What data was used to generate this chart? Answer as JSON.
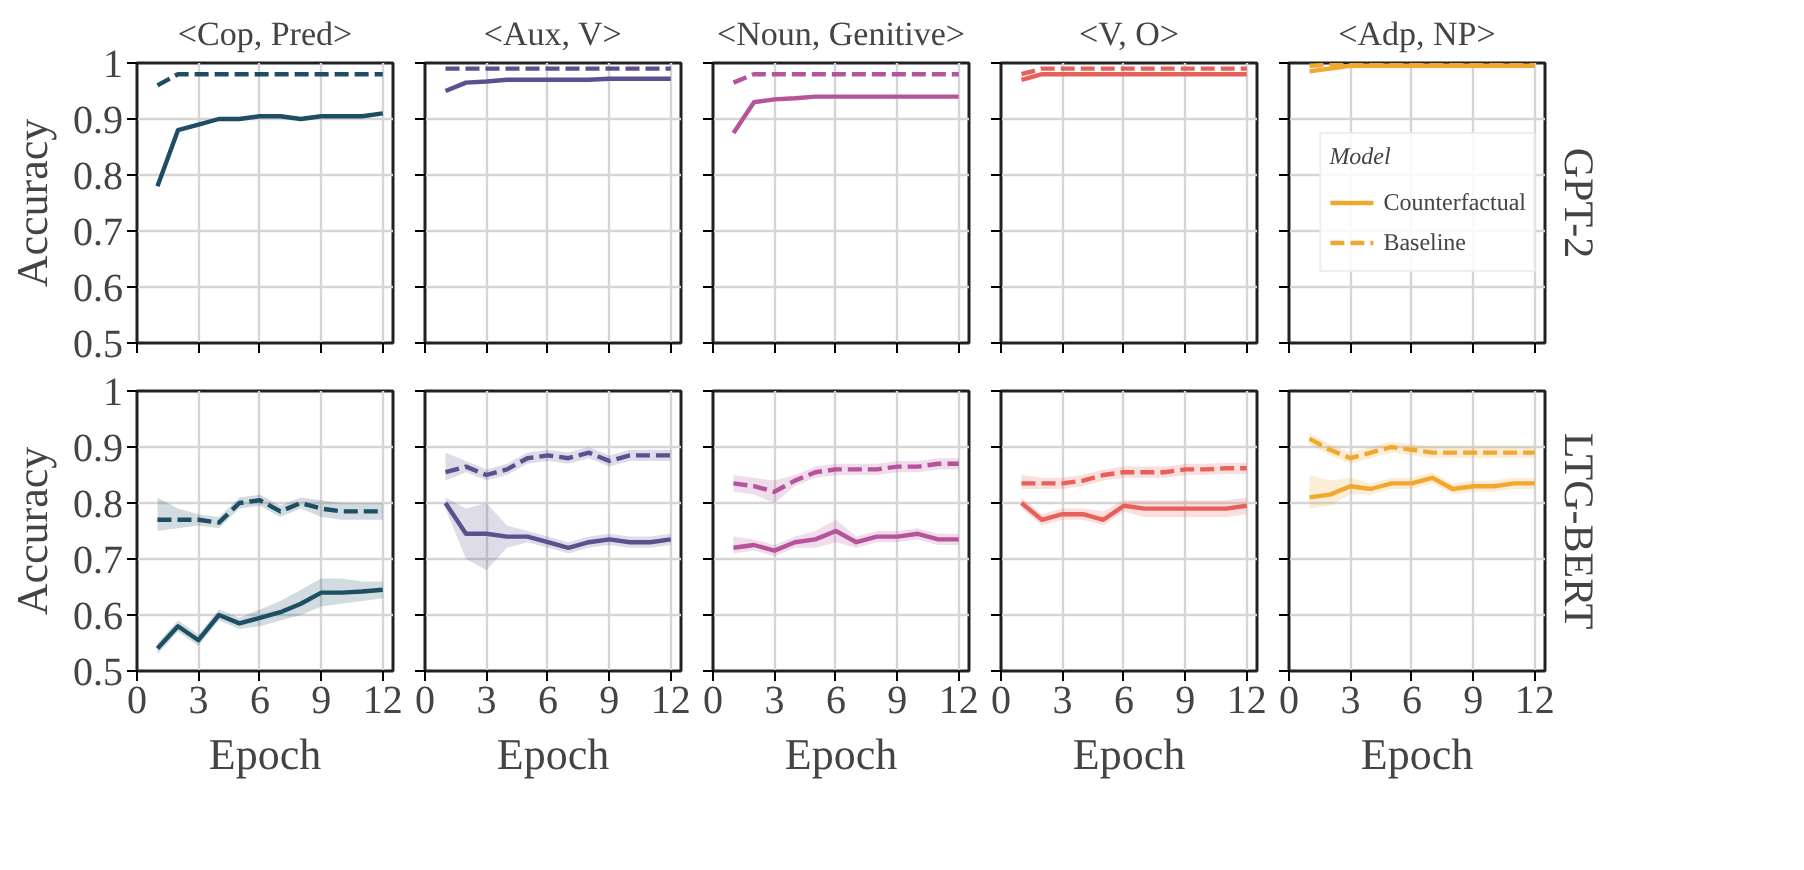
{
  "chart_data": [
    {
      "type": "line",
      "title": "<Cop, Pred>",
      "ylabel": "Accuracy",
      "x": [
        1,
        2,
        3,
        4,
        5,
        6,
        7,
        8,
        9,
        10,
        11,
        12
      ],
      "xlim": [
        0,
        12.5
      ],
      "xticks": [
        0,
        3,
        6,
        9,
        12
      ],
      "ylim": [
        0.5,
        1
      ],
      "yticks": [
        0.5,
        0.6,
        0.7,
        0.8,
        0.9,
        1
      ],
      "grid": true,
      "tick_labels": "y",
      "series": [
        {
          "color": "#1d4e63",
          "line_style": "solid",
          "values": [
            0.78,
            0.88,
            0.89,
            0.9,
            0.9,
            0.905,
            0.905,
            0.9,
            0.905,
            0.905,
            0.905,
            0.91
          ]
        },
        {
          "color": "#1d4e63",
          "line_style": "dashed",
          "values": [
            0.96,
            0.98,
            0.98,
            0.98,
            0.98,
            0.98,
            0.98,
            0.98,
            0.98,
            0.98,
            0.98,
            0.98
          ]
        }
      ]
    },
    {
      "type": "line",
      "title": "<Aux, V>",
      "x": [
        1,
        2,
        3,
        4,
        5,
        6,
        7,
        8,
        9,
        10,
        11,
        12
      ],
      "xlim": [
        0,
        12.5
      ],
      "xticks": [
        0,
        3,
        6,
        9,
        12
      ],
      "ylim": [
        0.5,
        1
      ],
      "yticks": [
        0.5,
        0.6,
        0.7,
        0.8,
        0.9,
        1
      ],
      "grid": true,
      "tick_labels": false,
      "series": [
        {
          "color": "#5e4f8f",
          "line_style": "solid",
          "values": [
            0.95,
            0.965,
            0.967,
            0.97,
            0.97,
            0.97,
            0.97,
            0.97,
            0.972,
            0.972,
            0.972,
            0.972
          ]
        },
        {
          "color": "#5e4f8f",
          "line_style": "dashed",
          "values": [
            0.99,
            0.99,
            0.99,
            0.99,
            0.99,
            0.99,
            0.99,
            0.99,
            0.99,
            0.99,
            0.99,
            0.99
          ]
        }
      ]
    },
    {
      "type": "line",
      "title": "<Noun, Genitive>",
      "x": [
        1,
        2,
        3,
        4,
        5,
        6,
        7,
        8,
        9,
        10,
        11,
        12
      ],
      "xlim": [
        0,
        12.5
      ],
      "xticks": [
        0,
        3,
        6,
        9,
        12
      ],
      "ylim": [
        0.5,
        1
      ],
      "yticks": [
        0.5,
        0.6,
        0.7,
        0.8,
        0.9,
        1
      ],
      "grid": true,
      "tick_labels": false,
      "series": [
        {
          "color": "#b5549a",
          "line_style": "solid",
          "values": [
            0.875,
            0.93,
            0.935,
            0.937,
            0.94,
            0.94,
            0.94,
            0.94,
            0.94,
            0.94,
            0.94,
            0.94
          ]
        },
        {
          "color": "#b5549a",
          "line_style": "dashed",
          "values": [
            0.965,
            0.98,
            0.98,
            0.98,
            0.98,
            0.98,
            0.98,
            0.98,
            0.98,
            0.98,
            0.98,
            0.98
          ]
        }
      ]
    },
    {
      "type": "line",
      "title": "<V, O>",
      "x": [
        1,
        2,
        3,
        4,
        5,
        6,
        7,
        8,
        9,
        10,
        11,
        12
      ],
      "xlim": [
        0,
        12.5
      ],
      "xticks": [
        0,
        3,
        6,
        9,
        12
      ],
      "ylim": [
        0.5,
        1
      ],
      "yticks": [
        0.5,
        0.6,
        0.7,
        0.8,
        0.9,
        1
      ],
      "grid": true,
      "tick_labels": false,
      "series": [
        {
          "color": "#e8605a",
          "line_style": "solid",
          "values": [
            0.97,
            0.98,
            0.98,
            0.98,
            0.98,
            0.98,
            0.98,
            0.98,
            0.98,
            0.98,
            0.98,
            0.98
          ]
        },
        {
          "color": "#e8605a",
          "line_style": "dashed",
          "values": [
            0.98,
            0.99,
            0.99,
            0.99,
            0.99,
            0.99,
            0.99,
            0.99,
            0.99,
            0.99,
            0.99,
            0.99
          ]
        }
      ]
    },
    {
      "type": "line",
      "title": "<Adp, NP>",
      "annotations": [
        "GPT-2"
      ],
      "legend": "right",
      "legend_title": "Model",
      "x": [
        1,
        2,
        3,
        4,
        5,
        6,
        7,
        8,
        9,
        10,
        11,
        12
      ],
      "xlim": [
        0,
        12.5
      ],
      "xticks": [
        0,
        3,
        6,
        9,
        12
      ],
      "ylim": [
        0.5,
        1
      ],
      "yticks": [
        0.5,
        0.6,
        0.7,
        0.8,
        0.9,
        1
      ],
      "grid": true,
      "tick_labels": false,
      "series": [
        {
          "name": "Counterfactual",
          "color": "#f0a830",
          "line_style": "solid",
          "values": [
            0.985,
            0.99,
            0.995,
            0.995,
            0.995,
            0.995,
            0.995,
            0.995,
            0.995,
            0.995,
            0.995,
            0.995
          ]
        },
        {
          "name": "Baseline",
          "color": "#f0a830",
          "line_style": "dashed",
          "values": [
            0.995,
            0.997,
            0.997,
            0.997,
            0.997,
            0.997,
            0.997,
            0.997,
            0.997,
            0.997,
            0.997,
            0.997
          ]
        }
      ]
    },
    {
      "type": "line",
      "xlabel": "Epoch",
      "ylabel": "Accuracy",
      "x": [
        1,
        2,
        3,
        4,
        5,
        6,
        7,
        8,
        9,
        10,
        11,
        12
      ],
      "xlim": [
        0,
        12.5
      ],
      "xticks": [
        0,
        3,
        6,
        9,
        12
      ],
      "ylim": [
        0.5,
        1
      ],
      "yticks": [
        0.5,
        0.6,
        0.7,
        0.8,
        0.9,
        1
      ],
      "grid": true,
      "series": [
        {
          "color": "#1d4e63",
          "line_style": "solid",
          "values": [
            0.54,
            0.58,
            0.555,
            0.6,
            0.585,
            0.595,
            0.605,
            0.62,
            0.64,
            0.64,
            0.642,
            0.645
          ],
          "lower": [
            0.53,
            0.57,
            0.545,
            0.59,
            0.575,
            0.58,
            0.59,
            0.6,
            0.615,
            0.62,
            0.625,
            0.63
          ],
          "upper": [
            0.55,
            0.59,
            0.565,
            0.61,
            0.595,
            0.61,
            0.625,
            0.645,
            0.665,
            0.665,
            0.66,
            0.66
          ]
        },
        {
          "color": "#1d4e63",
          "line_style": "dashed",
          "values": [
            0.77,
            0.77,
            0.77,
            0.765,
            0.8,
            0.805,
            0.785,
            0.8,
            0.79,
            0.785,
            0.785,
            0.785
          ],
          "lower": [
            0.75,
            0.755,
            0.76,
            0.755,
            0.79,
            0.795,
            0.775,
            0.79,
            0.775,
            0.77,
            0.77,
            0.77
          ],
          "upper": [
            0.81,
            0.79,
            0.78,
            0.775,
            0.81,
            0.815,
            0.795,
            0.81,
            0.805,
            0.8,
            0.8,
            0.8
          ]
        }
      ]
    },
    {
      "type": "line",
      "xlabel": "Epoch",
      "x": [
        1,
        2,
        3,
        4,
        5,
        6,
        7,
        8,
        9,
        10,
        11,
        12
      ],
      "xlim": [
        0,
        12.5
      ],
      "xticks": [
        0,
        3,
        6,
        9,
        12
      ],
      "ylim": [
        0.5,
        1
      ],
      "yticks": [
        0.5,
        0.6,
        0.7,
        0.8,
        0.9,
        1
      ],
      "grid": true,
      "tick_labels": "x",
      "series": [
        {
          "color": "#5e4f8f",
          "line_style": "solid",
          "values": [
            0.8,
            0.745,
            0.745,
            0.74,
            0.74,
            0.73,
            0.72,
            0.73,
            0.735,
            0.73,
            0.73,
            0.735
          ],
          "lower": [
            0.79,
            0.7,
            0.68,
            0.72,
            0.73,
            0.72,
            0.71,
            0.72,
            0.725,
            0.72,
            0.72,
            0.725
          ],
          "upper": [
            0.81,
            0.79,
            0.8,
            0.76,
            0.75,
            0.74,
            0.73,
            0.74,
            0.745,
            0.74,
            0.74,
            0.745
          ]
        },
        {
          "color": "#5e4f8f",
          "line_style": "dashed",
          "values": [
            0.855,
            0.865,
            0.85,
            0.86,
            0.88,
            0.885,
            0.88,
            0.89,
            0.875,
            0.885,
            0.885,
            0.885
          ],
          "lower": [
            0.84,
            0.855,
            0.84,
            0.85,
            0.87,
            0.875,
            0.87,
            0.88,
            0.865,
            0.875,
            0.875,
            0.875
          ],
          "upper": [
            0.89,
            0.875,
            0.86,
            0.87,
            0.89,
            0.895,
            0.89,
            0.9,
            0.885,
            0.895,
            0.895,
            0.895
          ]
        }
      ]
    },
    {
      "type": "line",
      "xlabel": "Epoch",
      "x": [
        1,
        2,
        3,
        4,
        5,
        6,
        7,
        8,
        9,
        10,
        11,
        12
      ],
      "xlim": [
        0,
        12.5
      ],
      "xticks": [
        0,
        3,
        6,
        9,
        12
      ],
      "ylim": [
        0.5,
        1
      ],
      "yticks": [
        0.5,
        0.6,
        0.7,
        0.8,
        0.9,
        1
      ],
      "grid": true,
      "tick_labels": "x",
      "series": [
        {
          "color": "#b5549a",
          "line_style": "solid",
          "values": [
            0.72,
            0.725,
            0.715,
            0.73,
            0.735,
            0.75,
            0.73,
            0.74,
            0.74,
            0.745,
            0.735,
            0.735
          ],
          "lower": [
            0.71,
            0.715,
            0.705,
            0.72,
            0.72,
            0.73,
            0.72,
            0.73,
            0.73,
            0.735,
            0.725,
            0.725
          ],
          "upper": [
            0.74,
            0.735,
            0.725,
            0.74,
            0.75,
            0.77,
            0.74,
            0.75,
            0.75,
            0.755,
            0.745,
            0.745
          ]
        },
        {
          "color": "#b5549a",
          "line_style": "dashed",
          "values": [
            0.835,
            0.83,
            0.82,
            0.84,
            0.855,
            0.86,
            0.86,
            0.86,
            0.865,
            0.865,
            0.87,
            0.87
          ],
          "lower": [
            0.82,
            0.815,
            0.8,
            0.83,
            0.845,
            0.85,
            0.85,
            0.85,
            0.855,
            0.855,
            0.86,
            0.86
          ],
          "upper": [
            0.85,
            0.845,
            0.84,
            0.85,
            0.865,
            0.87,
            0.87,
            0.87,
            0.875,
            0.875,
            0.88,
            0.88
          ]
        }
      ]
    },
    {
      "type": "line",
      "xlabel": "Epoch",
      "x": [
        1,
        2,
        3,
        4,
        5,
        6,
        7,
        8,
        9,
        10,
        11,
        12
      ],
      "xlim": [
        0,
        12.5
      ],
      "xticks": [
        0,
        3,
        6,
        9,
        12
      ],
      "ylim": [
        0.5,
        1
      ],
      "yticks": [
        0.5,
        0.6,
        0.7,
        0.8,
        0.9,
        1
      ],
      "grid": true,
      "tick_labels": "x",
      "series": [
        {
          "color": "#e8605a",
          "line_style": "solid",
          "values": [
            0.8,
            0.77,
            0.78,
            0.78,
            0.77,
            0.795,
            0.79,
            0.79,
            0.79,
            0.79,
            0.79,
            0.795
          ],
          "lower": [
            0.79,
            0.76,
            0.77,
            0.77,
            0.76,
            0.785,
            0.775,
            0.775,
            0.775,
            0.775,
            0.775,
            0.78
          ],
          "upper": [
            0.81,
            0.78,
            0.79,
            0.79,
            0.785,
            0.805,
            0.805,
            0.805,
            0.805,
            0.805,
            0.805,
            0.81
          ]
        },
        {
          "color": "#e8605a",
          "line_style": "dashed",
          "values": [
            0.835,
            0.835,
            0.835,
            0.84,
            0.85,
            0.855,
            0.855,
            0.855,
            0.86,
            0.86,
            0.862,
            0.862
          ],
          "lower": [
            0.825,
            0.825,
            0.825,
            0.83,
            0.84,
            0.845,
            0.845,
            0.845,
            0.85,
            0.85,
            0.852,
            0.852
          ],
          "upper": [
            0.85,
            0.845,
            0.845,
            0.85,
            0.86,
            0.865,
            0.865,
            0.865,
            0.87,
            0.87,
            0.872,
            0.872
          ]
        }
      ]
    },
    {
      "type": "line",
      "xlabel": "Epoch",
      "annotations": [
        "LTG-BERT"
      ],
      "x": [
        1,
        2,
        3,
        4,
        5,
        6,
        7,
        8,
        9,
        10,
        11,
        12
      ],
      "xlim": [
        0,
        12.5
      ],
      "xticks": [
        0,
        3,
        6,
        9,
        12
      ],
      "ylim": [
        0.5,
        1
      ],
      "yticks": [
        0.5,
        0.6,
        0.7,
        0.8,
        0.9,
        1
      ],
      "grid": true,
      "tick_labels": "x",
      "series": [
        {
          "color": "#f0a830",
          "line_style": "solid",
          "values": [
            0.81,
            0.815,
            0.83,
            0.825,
            0.835,
            0.835,
            0.845,
            0.825,
            0.83,
            0.83,
            0.835,
            0.835
          ],
          "lower": [
            0.79,
            0.795,
            0.815,
            0.815,
            0.825,
            0.825,
            0.835,
            0.815,
            0.82,
            0.82,
            0.825,
            0.825
          ],
          "upper": [
            0.85,
            0.84,
            0.845,
            0.835,
            0.845,
            0.845,
            0.855,
            0.835,
            0.84,
            0.84,
            0.845,
            0.845
          ]
        },
        {
          "color": "#f0a830",
          "line_style": "dashed",
          "values": [
            0.915,
            0.895,
            0.88,
            0.89,
            0.9,
            0.895,
            0.89,
            0.89,
            0.89,
            0.89,
            0.89,
            0.89
          ],
          "lower": [
            0.905,
            0.885,
            0.87,
            0.88,
            0.89,
            0.885,
            0.88,
            0.88,
            0.88,
            0.88,
            0.88,
            0.88
          ],
          "upper": [
            0.925,
            0.905,
            0.89,
            0.9,
            0.91,
            0.905,
            0.9,
            0.9,
            0.9,
            0.9,
            0.9,
            0.9
          ]
        }
      ]
    }
  ]
}
